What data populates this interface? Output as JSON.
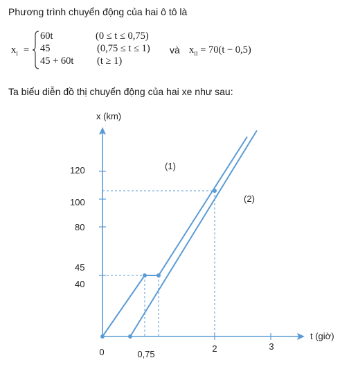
{
  "intro_text": "Phương trình chuyển động của hai ô tô là",
  "formula": {
    "xi_label": "x",
    "xi_sub": "I",
    "equals": "=",
    "cases": [
      {
        "expr": "60t",
        "cond": "(0 ≤ t ≤ 0,75)"
      },
      {
        "expr": "45",
        "cond": "(0,75 ≤ t ≤ 1)"
      },
      {
        "expr": "45 + 60t",
        "cond": "(t ≥ 1)"
      }
    ],
    "and_text": "và",
    "xii_label": "x",
    "xii_sub": "II",
    "xii_expr": "= 70(t − 0,5)"
  },
  "graph_intro": "Ta biểu diễn đồ thị chuyển động của hai xe như sau:",
  "graph": {
    "y_axis_label": "x (km)",
    "x_axis_label": "t (giờ)",
    "origin_label": "0",
    "y_ticks": [
      {
        "label": "120",
        "value": 120
      },
      {
        "label": "100",
        "value": 100
      },
      {
        "label": "80",
        "value": 80
      },
      {
        "label": "45",
        "value": 45
      },
      {
        "label": "40",
        "value": 40
      }
    ],
    "x_ticks": [
      {
        "label": "0,75",
        "value": 0.75
      },
      {
        "label": "2",
        "value": 2
      },
      {
        "label": "3",
        "value": 3
      }
    ],
    "line_labels": [
      {
        "label": "(1)"
      },
      {
        "label": "(2)"
      }
    ],
    "color": "#5b9bd5"
  }
}
